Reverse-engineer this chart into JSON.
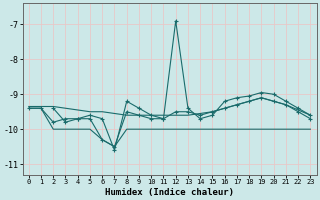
{
  "xlabel": "Humidex (Indice chaleur)",
  "background_color": "#cce8e8",
  "grid_color": "#e8c8c8",
  "line_color": "#1a6b6b",
  "xlim": [
    -0.5,
    23.5
  ],
  "ylim": [
    -11.3,
    -6.4
  ],
  "yticks": [
    -11,
    -10,
    -9,
    -8,
    -7
  ],
  "xticks": [
    0,
    1,
    2,
    3,
    4,
    5,
    6,
    7,
    8,
    9,
    10,
    11,
    12,
    13,
    14,
    15,
    16,
    17,
    18,
    19,
    20,
    21,
    22,
    23
  ],
  "line_upper": {
    "x": [
      0,
      1,
      2,
      3,
      4,
      5,
      6,
      7,
      8,
      9,
      10,
      11,
      12,
      13,
      14,
      15,
      16,
      17,
      18,
      19,
      20,
      21,
      22,
      23
    ],
    "y": [
      -9.35,
      -9.35,
      -9.35,
      -9.4,
      -9.45,
      -9.5,
      -9.5,
      -9.55,
      -9.6,
      -9.6,
      -9.6,
      -9.6,
      -9.6,
      -9.6,
      -9.55,
      -9.5,
      -9.4,
      -9.3,
      -9.2,
      -9.1,
      -9.2,
      -9.3,
      -9.45,
      -9.6
    ],
    "marker": false
  },
  "line_main": {
    "x": [
      0,
      1,
      2,
      3,
      4,
      5,
      6,
      7,
      8,
      9,
      10,
      11,
      12,
      13,
      14,
      15,
      16,
      17,
      18,
      19,
      20,
      21,
      22,
      23
    ],
    "y": [
      -9.4,
      -9.4,
      -9.8,
      -9.7,
      -9.7,
      -9.7,
      -10.3,
      -10.5,
      -9.5,
      -9.6,
      -9.7,
      -9.7,
      -9.5,
      -9.5,
      -9.6,
      -9.5,
      -9.4,
      -9.3,
      -9.2,
      -9.1,
      -9.2,
      -9.3,
      -9.5,
      -9.7
    ],
    "marker": true
  },
  "line_spike": {
    "x": [
      2,
      3,
      4,
      5,
      6,
      7,
      8,
      9,
      10,
      11,
      12,
      13,
      14,
      15,
      16,
      17,
      18,
      19,
      20,
      21,
      22,
      23
    ],
    "y": [
      -9.4,
      -9.8,
      -9.7,
      -9.6,
      -9.7,
      -10.6,
      -9.2,
      -9.4,
      -9.6,
      -9.7,
      -6.9,
      -9.4,
      -9.7,
      -9.6,
      -9.2,
      -9.1,
      -9.05,
      -8.95,
      -9.0,
      -9.2,
      -9.4,
      -9.6
    ],
    "marker": true
  },
  "line_lower": {
    "x": [
      0,
      1,
      2,
      3,
      4,
      5,
      6,
      7,
      8,
      9,
      10,
      11,
      12,
      13,
      14,
      15,
      16,
      17,
      18,
      19,
      20,
      21,
      22,
      23
    ],
    "y": [
      -9.4,
      -9.4,
      -10.0,
      -10.0,
      -10.0,
      -10.0,
      -10.3,
      -10.5,
      -10.0,
      -10.0,
      -10.0,
      -10.0,
      -10.0,
      -10.0,
      -10.0,
      -10.0,
      -10.0,
      -10.0,
      -10.0,
      -10.0,
      -10.0,
      -10.0,
      -10.0,
      -10.0
    ],
    "marker": false
  }
}
